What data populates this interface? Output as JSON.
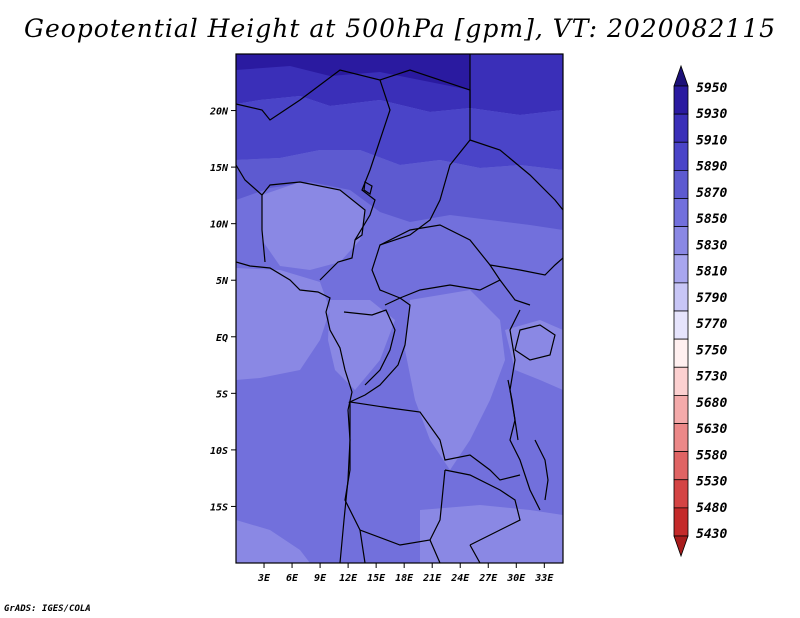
{
  "title": "Geopotential Height at 500hPa [gpm], VT: 2020082115",
  "footer": "GrADS: IGES/COLA",
  "map": {
    "lon_range": [
      0,
      35
    ],
    "lat_range": [
      -20,
      25
    ],
    "lat_ticks": [
      {
        "value": 20,
        "label": "20N"
      },
      {
        "value": 15,
        "label": "15N"
      },
      {
        "value": 10,
        "label": "10N"
      },
      {
        "value": 5,
        "label": "5N"
      },
      {
        "value": 0,
        "label": "EQ"
      },
      {
        "value": -5,
        "label": "5S"
      },
      {
        "value": -10,
        "label": "10S"
      },
      {
        "value": -15,
        "label": "15S"
      }
    ],
    "lon_ticks": [
      {
        "value": 3,
        "label": "3E"
      },
      {
        "value": 6,
        "label": "6E"
      },
      {
        "value": 9,
        "label": "9E"
      },
      {
        "value": 12,
        "label": "12E"
      },
      {
        "value": 15,
        "label": "15E"
      },
      {
        "value": 18,
        "label": "18E"
      },
      {
        "value": 21,
        "label": "21E"
      },
      {
        "value": 24,
        "label": "24E"
      },
      {
        "value": 27,
        "label": "27E"
      },
      {
        "value": 30,
        "label": "30E"
      },
      {
        "value": 33,
        "label": "33E"
      }
    ]
  },
  "colorbar": {
    "levels": [
      "5950",
      "5930",
      "5910",
      "5890",
      "5870",
      "5850",
      "5830",
      "5810",
      "5790",
      "5770",
      "5750",
      "5730",
      "5680",
      "5630",
      "5580",
      "5530",
      "5480",
      "5430"
    ],
    "colors": [
      "#1c1078",
      "#2a1aa0",
      "#3a2fb8",
      "#4a44c8",
      "#5d5ad0",
      "#7270dc",
      "#8a88e4",
      "#a8a6ee",
      "#c8c6f6",
      "#e6e4fc",
      "#fff0f0",
      "#fcd0d0",
      "#f4aaaa",
      "#ec8888",
      "#e06464",
      "#d44444",
      "#c42a2a",
      "#a81c1c"
    ]
  }
}
